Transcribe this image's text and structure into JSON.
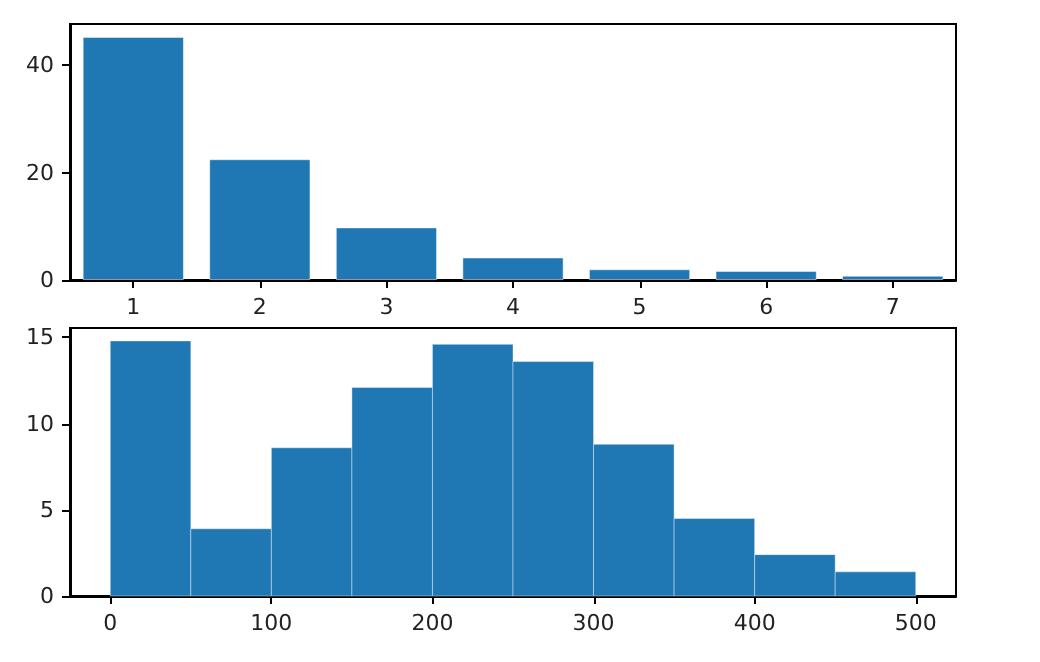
{
  "chart_data": [
    {
      "type": "bar",
      "categories": [
        "1",
        "2",
        "3",
        "4",
        "5",
        "6",
        "7"
      ],
      "values": [
        45.3,
        22.5,
        9.8,
        4.2,
        2.0,
        1.7,
        0.8
      ],
      "color": "#1f77b4",
      "ylim": [
        0,
        47.7
      ],
      "yticks": [
        0,
        20,
        40
      ],
      "grid": false
    },
    {
      "type": "histogram",
      "bins": [
        0,
        50,
        100,
        150,
        200,
        250,
        300,
        350,
        400,
        450,
        500
      ],
      "values": [
        14.8,
        3.9,
        8.6,
        12.1,
        14.6,
        13.6,
        8.8,
        4.5,
        2.4,
        1.4
      ],
      "color": "#1f77b4",
      "xlim": [
        -25,
        525
      ],
      "xticks": [
        0,
        100,
        200,
        300,
        400,
        500
      ],
      "ylim": [
        0,
        15.55
      ],
      "yticks": [
        0,
        5,
        10,
        15
      ],
      "grid": false
    }
  ]
}
